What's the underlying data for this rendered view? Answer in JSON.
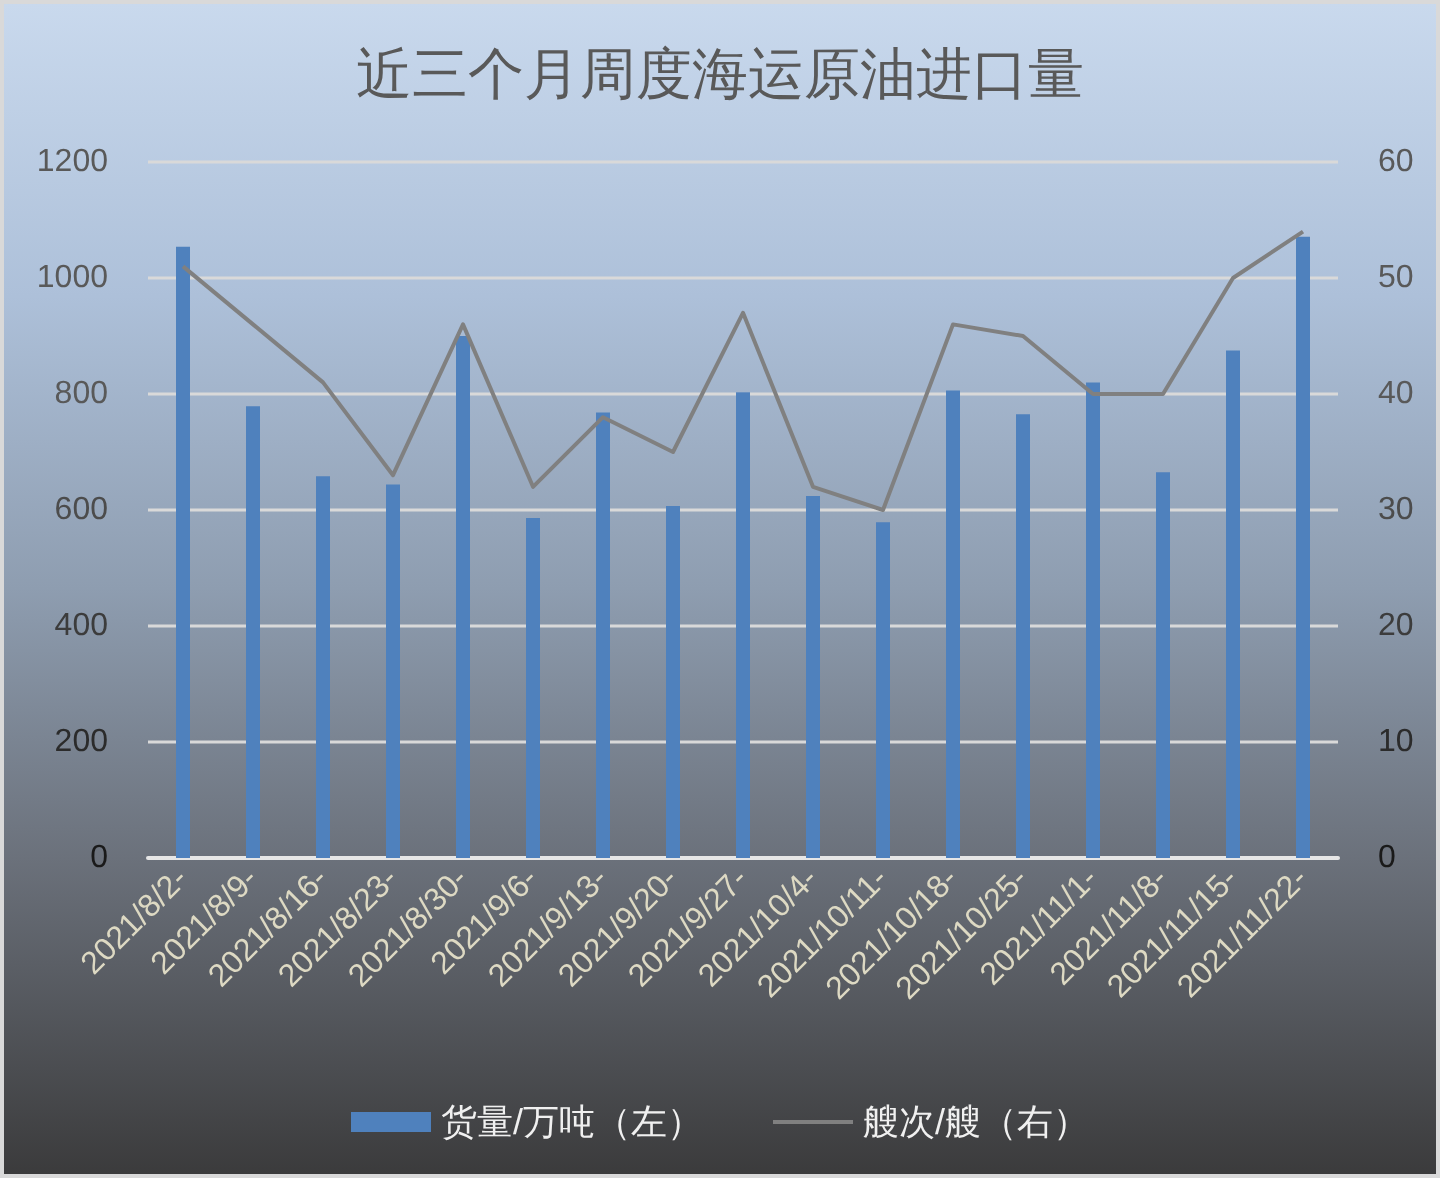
{
  "chart_data": {
    "type": "bar",
    "title": "近三个月周度海运原油进口量",
    "categories": [
      "2021/8/2-",
      "2021/8/9-",
      "2021/8/16-",
      "2021/8/23-",
      "2021/8/30-",
      "2021/9/6-",
      "2021/9/13-",
      "2021/9/20-",
      "2021/9/27-",
      "2021/10/4-",
      "2021/10/11-",
      "2021/10/18-",
      "2021/10/25-",
      "2021/11/1-",
      "2021/11/8-",
      "2021/11/15-",
      "2021/11/22-"
    ],
    "series": [
      {
        "name": "货量/万吨（左）",
        "color": "#4f81bd",
        "values": [
          1054,
          779,
          658,
          644,
          900,
          586,
          768,
          607,
          803,
          624,
          579,
          806,
          765,
          820,
          665,
          875,
          1071
        ]
      },
      {
        "name": "艘次/艘（右）",
        "type": "line",
        "axis": "y2",
        "color": "#808080",
        "values": [
          51,
          46,
          41,
          33,
          46,
          32,
          38,
          35,
          47,
          32,
          30,
          46,
          45,
          40,
          40,
          50,
          54
        ]
      }
    ],
    "ylim": [
      0,
      1200
    ],
    "yticks": [
      0,
      200,
      400,
      600,
      800,
      1000,
      1200
    ],
    "y2lim": [
      0,
      60
    ],
    "y2ticks": [
      0,
      10,
      20,
      30,
      40,
      50,
      60
    ],
    "grid": "y",
    "legend": "bottom",
    "marker": "none"
  }
}
